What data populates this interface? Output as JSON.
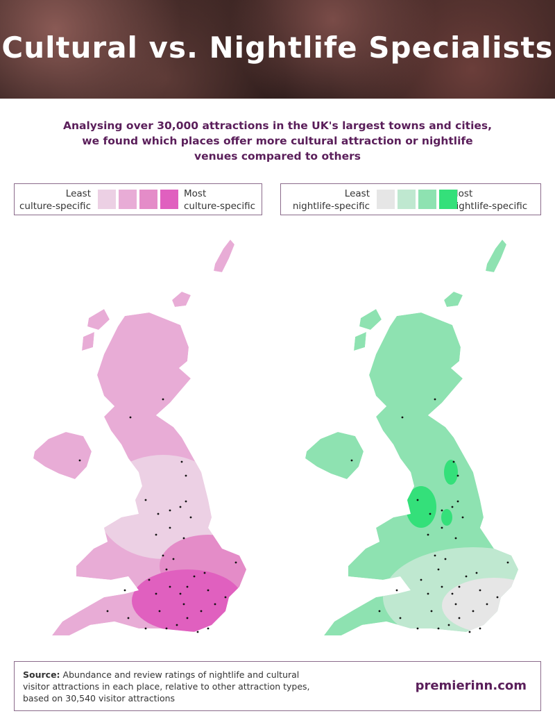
{
  "header": {
    "title": "Cultural vs. Nightlife Specialists"
  },
  "intro": {
    "lines": [
      "Analysing over 30,000 attractions in the UK's largest towns and cities,",
      "we found which places offer more cultural attraction or nightlife",
      "venues compared to others"
    ]
  },
  "legends": [
    {
      "low": [
        "Least",
        "culture-specific"
      ],
      "high": [
        "Most",
        "culture-specific"
      ],
      "colors": [
        "#ecd0e4",
        "#e8acd6",
        "#e48cc8",
        "#e060bf"
      ]
    },
    {
      "low": [
        "Least",
        "nightlife-specific"
      ],
      "high": [
        "Most",
        "nightlife-specific"
      ],
      "colors": [
        "#e6e6e6",
        "#bfe8d0",
        "#8ee2b1",
        "#34e07a"
      ]
    }
  ],
  "footer": {
    "source_label": "Source:",
    "source_lines": [
      "Abundance and review ratings of nightlife and cultural",
      "visitor attractions in each place, relative to other attraction types,",
      "based on 30,540 visitor attractions"
    ],
    "brand": "premierinn.com"
  }
}
